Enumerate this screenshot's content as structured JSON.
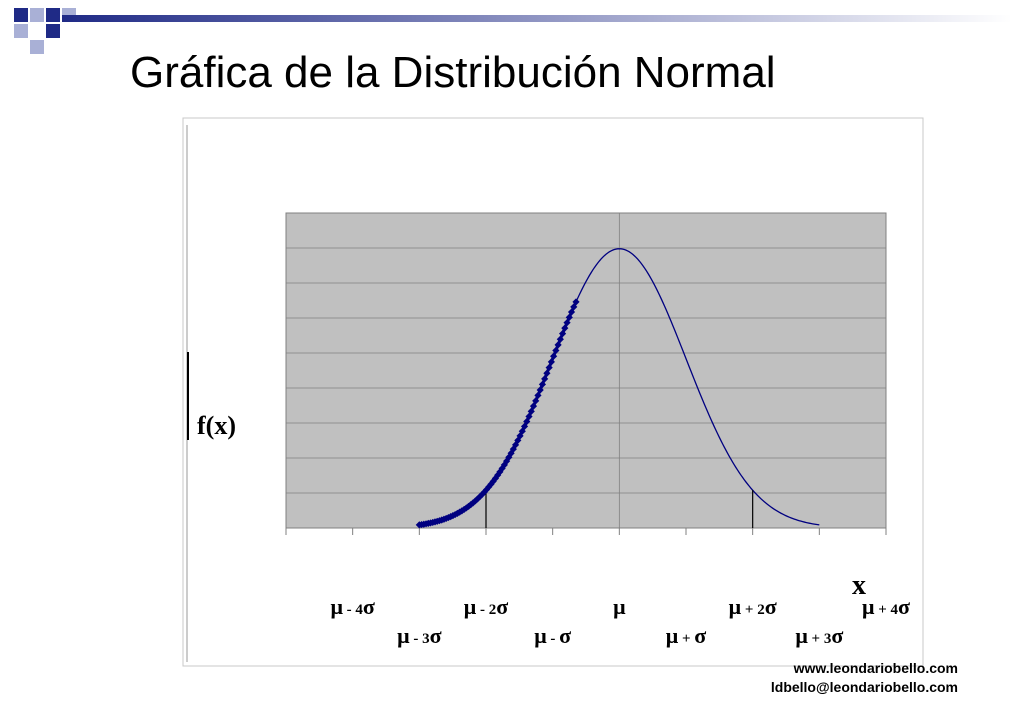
{
  "slide": {
    "title": "Gráfica de la Distribución Normal",
    "footer_web": "www.leondariobello.com",
    "footer_email": "ldbello@leondariobello.com"
  },
  "colors": {
    "plot_background": "#c0c0c0",
    "curve": "#000080",
    "highlight": "#000080",
    "decor_dark": "#1f2a86",
    "decor_light": "#a9b0d6"
  },
  "chart_data": {
    "type": "line",
    "title": "",
    "ylabel": "f(x)",
    "xlabel": "x",
    "mean": 0,
    "sd": 1,
    "xlim": [
      -5,
      4
    ],
    "ylim": [
      0,
      0.45
    ],
    "y_gridlines": 9,
    "grid": true,
    "curve_range": [
      -3,
      3
    ],
    "highlighted_range": [
      -3,
      -0.65
    ],
    "vertical_markers": [
      -2,
      2
    ],
    "tick_labels": [
      {
        "name": "mu-minus-4sigma",
        "x": -4,
        "base": "μ",
        "sub": " - 4",
        "tail": "σ",
        "row": 1
      },
      {
        "name": "mu-minus-3sigma",
        "x": -3,
        "base": "μ",
        "sub": " - 3",
        "tail": "σ",
        "row": 2
      },
      {
        "name": "mu-minus-2sigma",
        "x": -2,
        "base": "μ",
        "sub": " - 2",
        "tail": "σ",
        "row": 1
      },
      {
        "name": "mu-minus-sigma",
        "x": -1,
        "base": "μ",
        "sub": " - ",
        "tail": "σ",
        "row": 2
      },
      {
        "name": "mu",
        "x": 0,
        "base": "μ",
        "sub": "",
        "tail": "",
        "row": 1
      },
      {
        "name": "mu-plus-sigma",
        "x": 1,
        "base": "μ",
        "sub": " + ",
        "tail": "σ",
        "row": 2
      },
      {
        "name": "mu-plus-2sigma",
        "x": 2,
        "base": "μ",
        "sub": " + 2",
        "tail": "σ",
        "row": 1
      },
      {
        "name": "mu-plus-3sigma",
        "x": 3,
        "base": "μ",
        "sub": " + 3",
        "tail": "σ",
        "row": 2
      },
      {
        "name": "mu-plus-4sigma",
        "x": 4,
        "base": "μ",
        "sub": " + 4",
        "tail": "σ",
        "row": 1
      }
    ]
  }
}
